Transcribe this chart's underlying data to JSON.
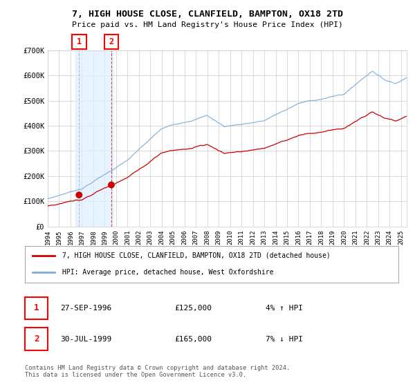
{
  "title": "7, HIGH HOUSE CLOSE, CLANFIELD, BAMPTON, OX18 2TD",
  "subtitle": "Price paid vs. HM Land Registry's House Price Index (HPI)",
  "ylim": [
    0,
    700000
  ],
  "yticks": [
    0,
    100000,
    200000,
    300000,
    400000,
    500000,
    600000,
    700000
  ],
  "ytick_labels": [
    "£0",
    "£100K",
    "£200K",
    "£300K",
    "£400K",
    "£500K",
    "£600K",
    "£700K"
  ],
  "hpi_color": "#7aaddb",
  "price_color": "#cc0000",
  "sale1_date": 1996.75,
  "sale1_price": 125000,
  "sale2_date": 1999.58,
  "sale2_price": 165000,
  "legend_label1": "7, HIGH HOUSE CLOSE, CLANFIELD, BAMPTON, OX18 2TD (detached house)",
  "legend_label2": "HPI: Average price, detached house, West Oxfordshire",
  "footnote": "Contains HM Land Registry data © Crown copyright and database right 2024.\nThis data is licensed under the Open Government Licence v3.0.",
  "background_color": "#ffffff",
  "grid_color": "#cccccc",
  "hatch_color": "#bbbbbb",
  "sale_band_color": "#ddeeff",
  "xstart": 1994.0,
  "xend": 2025.5
}
